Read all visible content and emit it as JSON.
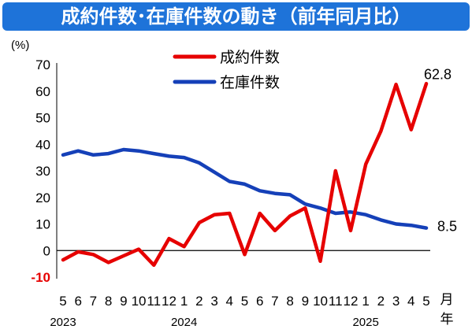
{
  "chart_data": {
    "type": "line",
    "title": "成約件数･在庫件数の動き（前年同月比）",
    "y_unit": "(%)",
    "x_unit": "月",
    "x_unit2": "年",
    "ylim": [
      -10,
      70
    ],
    "yticks": [
      "-10",
      "0",
      "10",
      "20",
      "30",
      "40",
      "50",
      "60",
      "70"
    ],
    "categories": [
      "5",
      "6",
      "7",
      "8",
      "9",
      "10",
      "11",
      "12",
      "1",
      "2",
      "3",
      "4",
      "5",
      "6",
      "7",
      "8",
      "9",
      "10",
      "11",
      "12",
      "1",
      "2",
      "3",
      "4",
      "5"
    ],
    "years": [
      {
        "label": "2023",
        "index": 0
      },
      {
        "label": "2024",
        "index": 8
      },
      {
        "label": "2025",
        "index": 20
      }
    ],
    "grid": false,
    "legend_position": "top-center",
    "series": [
      {
        "name": "成約件数",
        "color": "#e60000",
        "values": [
          -3.5,
          -0.5,
          -1.5,
          -4.5,
          -2.0,
          0.5,
          -5.5,
          4.5,
          1.5,
          10.5,
          13.5,
          14.0,
          -1.5,
          14.0,
          7.5,
          13.0,
          16.0,
          -4.0,
          30.0,
          7.5,
          32.5,
          45.0,
          62.5,
          45.5,
          62.8
        ],
        "end_label": "62.8"
      },
      {
        "name": "在庫件数",
        "color": "#1540b8",
        "values": [
          36.0,
          37.5,
          36.0,
          36.5,
          38.0,
          37.5,
          36.5,
          35.5,
          35.0,
          33.0,
          29.5,
          26.0,
          25.0,
          22.5,
          21.5,
          21.0,
          17.5,
          16.0,
          14.0,
          14.5,
          13.5,
          11.5,
          10.0,
          9.5,
          8.5
        ],
        "end_label": "8.5"
      }
    ]
  }
}
